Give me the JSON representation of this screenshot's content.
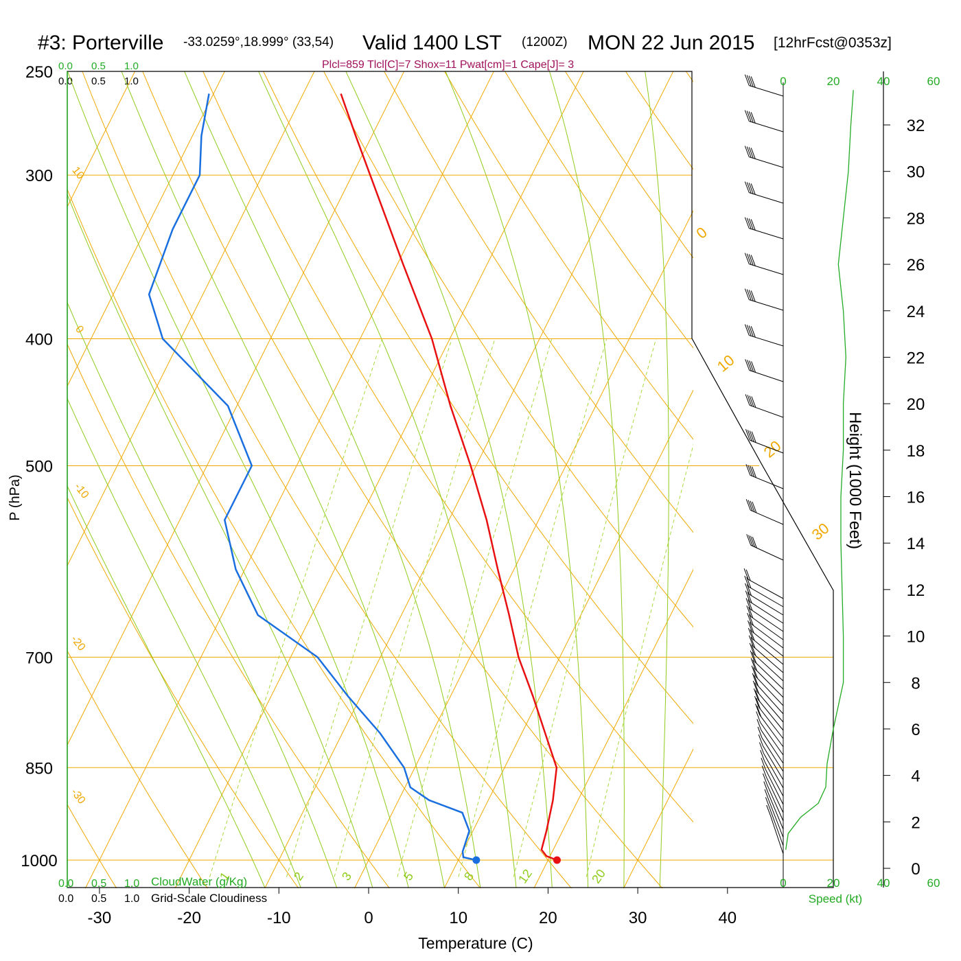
{
  "header": {
    "station": "#3: Porterville",
    "coords": "-33.0259°,18.999° (33,54)",
    "valid": "Valid 1400 LST",
    "utc": "(1200Z)",
    "date": "MON 22 Jun 2015",
    "forecast": "[12hrFcst@0353z]",
    "params": "Plcl=859 Tlcl[C]=7 Shox=11 Pwat[cm]=1 Cape[J]= 3"
  },
  "colors": {
    "temperature": "#e81010",
    "dewpoint": "#1a6fe0",
    "isotherm": "#f0a800",
    "dry_adiabat": "#f0a800",
    "moist_adiabat": "#8fcc1a",
    "mixing_ratio": "#a8d83a",
    "speed_profile": "#22aa22",
    "param_text": "#a0105a"
  },
  "top_scales": {
    "cloudwater": [
      "0.0",
      "0.5",
      "1.0"
    ],
    "cloudiness": [
      "0.0",
      "0.5",
      "1.0"
    ]
  },
  "bottom_scales": {
    "cloudwater": [
      "0.0",
      "0.5",
      "1.0"
    ],
    "cloudiness": [
      "0.0",
      "0.5",
      "1.0"
    ],
    "cloudwater_label": "CloudWater (g/Kg)",
    "cloudiness_label": "Grid-Scale Cloudiness"
  },
  "speed_axis": {
    "top_ticks": [
      "0",
      "20",
      "40",
      "60"
    ],
    "bottom_ticks": [
      "0",
      "20",
      "40",
      "60"
    ],
    "label": "Speed (kt)"
  },
  "height_axis": {
    "label": "Height (1000 Feet)",
    "ticks": [
      0,
      2,
      4,
      6,
      8,
      10,
      12,
      14,
      16,
      18,
      20,
      22,
      24,
      26,
      28,
      30,
      32
    ]
  },
  "chart_data": {
    "type": "line",
    "subtype": "skew-T log-P sounding",
    "xlabel": "Temperature (C)",
    "ylabel": "P (hPa)",
    "x_ticks": [
      -30,
      -20,
      -10,
      0,
      10,
      20,
      30,
      40
    ],
    "y_ticks": [
      250,
      300,
      400,
      500,
      700,
      850,
      1000
    ],
    "ylim": [
      1020,
      250
    ],
    "temperature_profile": [
      {
        "p": 1000,
        "t": 21.0
      },
      {
        "p": 993,
        "t": 19.6
      },
      {
        "p": 982,
        "t": 18.7
      },
      {
        "p": 950,
        "t": 18.2
      },
      {
        "p": 900,
        "t": 17.2
      },
      {
        "p": 850,
        "t": 15.8
      },
      {
        "p": 800,
        "t": 12.6
      },
      {
        "p": 750,
        "t": 9.2
      },
      {
        "p": 700,
        "t": 5.4
      },
      {
        "p": 650,
        "t": 2.0
      },
      {
        "p": 600,
        "t": -1.8
      },
      {
        "p": 550,
        "t": -5.8
      },
      {
        "p": 500,
        "t": -10.6
      },
      {
        "p": 450,
        "t": -16.2
      },
      {
        "p": 400,
        "t": -22.0
      },
      {
        "p": 350,
        "t": -29.5
      },
      {
        "p": 300,
        "t": -38.0
      },
      {
        "p": 280,
        "t": -41.8
      },
      {
        "p": 260,
        "t": -45.8
      }
    ],
    "dewpoint_profile": [
      {
        "p": 1000,
        "t": 12.0
      },
      {
        "p": 995,
        "t": 10.4
      },
      {
        "p": 985,
        "t": 10.0
      },
      {
        "p": 950,
        "t": 9.6
      },
      {
        "p": 920,
        "t": 7.8
      },
      {
        "p": 900,
        "t": 3.4
      },
      {
        "p": 880,
        "t": 0.6
      },
      {
        "p": 850,
        "t": -1.2
      },
      {
        "p": 800,
        "t": -5.8
      },
      {
        "p": 750,
        "t": -11.4
      },
      {
        "p": 700,
        "t": -17.0
      },
      {
        "p": 650,
        "t": -26.0
      },
      {
        "p": 600,
        "t": -31.0
      },
      {
        "p": 550,
        "t": -35.0
      },
      {
        "p": 500,
        "t": -35.0
      },
      {
        "p": 450,
        "t": -41.0
      },
      {
        "p": 400,
        "t": -52.0
      },
      {
        "p": 370,
        "t": -56.0
      },
      {
        "p": 330,
        "t": -57.0
      },
      {
        "p": 300,
        "t": -57.0
      },
      {
        "p": 280,
        "t": -59.0
      },
      {
        "p": 260,
        "t": -60.5
      }
    ],
    "surface_points": [
      {
        "series": "temperature",
        "p": 1000,
        "t": 21.0
      },
      {
        "series": "dewpoint",
        "p": 1000,
        "t": 12.0
      }
    ],
    "dry_adiabat_labels": [
      "10",
      "0",
      "-10",
      "-20",
      "-30"
    ],
    "moist_adiabat_labels": [
      "0",
      "10",
      "20",
      "30"
    ],
    "mixing_ratio_labels": [
      "1",
      "2",
      "3",
      "5",
      "8",
      "12",
      "20"
    ],
    "wind_speed_profile": [
      {
        "h": 0.8,
        "kt": 1
      },
      {
        "h": 1.5,
        "kt": 2
      },
      {
        "h": 2.2,
        "kt": 7
      },
      {
        "h": 2.8,
        "kt": 14
      },
      {
        "h": 3.5,
        "kt": 17
      },
      {
        "h": 4.5,
        "kt": 17.5
      },
      {
        "h": 6,
        "kt": 20
      },
      {
        "h": 8,
        "kt": 24
      },
      {
        "h": 10,
        "kt": 24
      },
      {
        "h": 12,
        "kt": 23.5
      },
      {
        "h": 14,
        "kt": 23
      },
      {
        "h": 16,
        "kt": 23
      },
      {
        "h": 18,
        "kt": 24
      },
      {
        "h": 20,
        "kt": 24
      },
      {
        "h": 22,
        "kt": 25
      },
      {
        "h": 24,
        "kt": 24
      },
      {
        "h": 26,
        "kt": 22
      },
      {
        "h": 28,
        "kt": 24
      },
      {
        "h": 30,
        "kt": 26
      },
      {
        "h": 32,
        "kt": 27
      },
      {
        "h": 33.5,
        "kt": 28
      }
    ]
  }
}
